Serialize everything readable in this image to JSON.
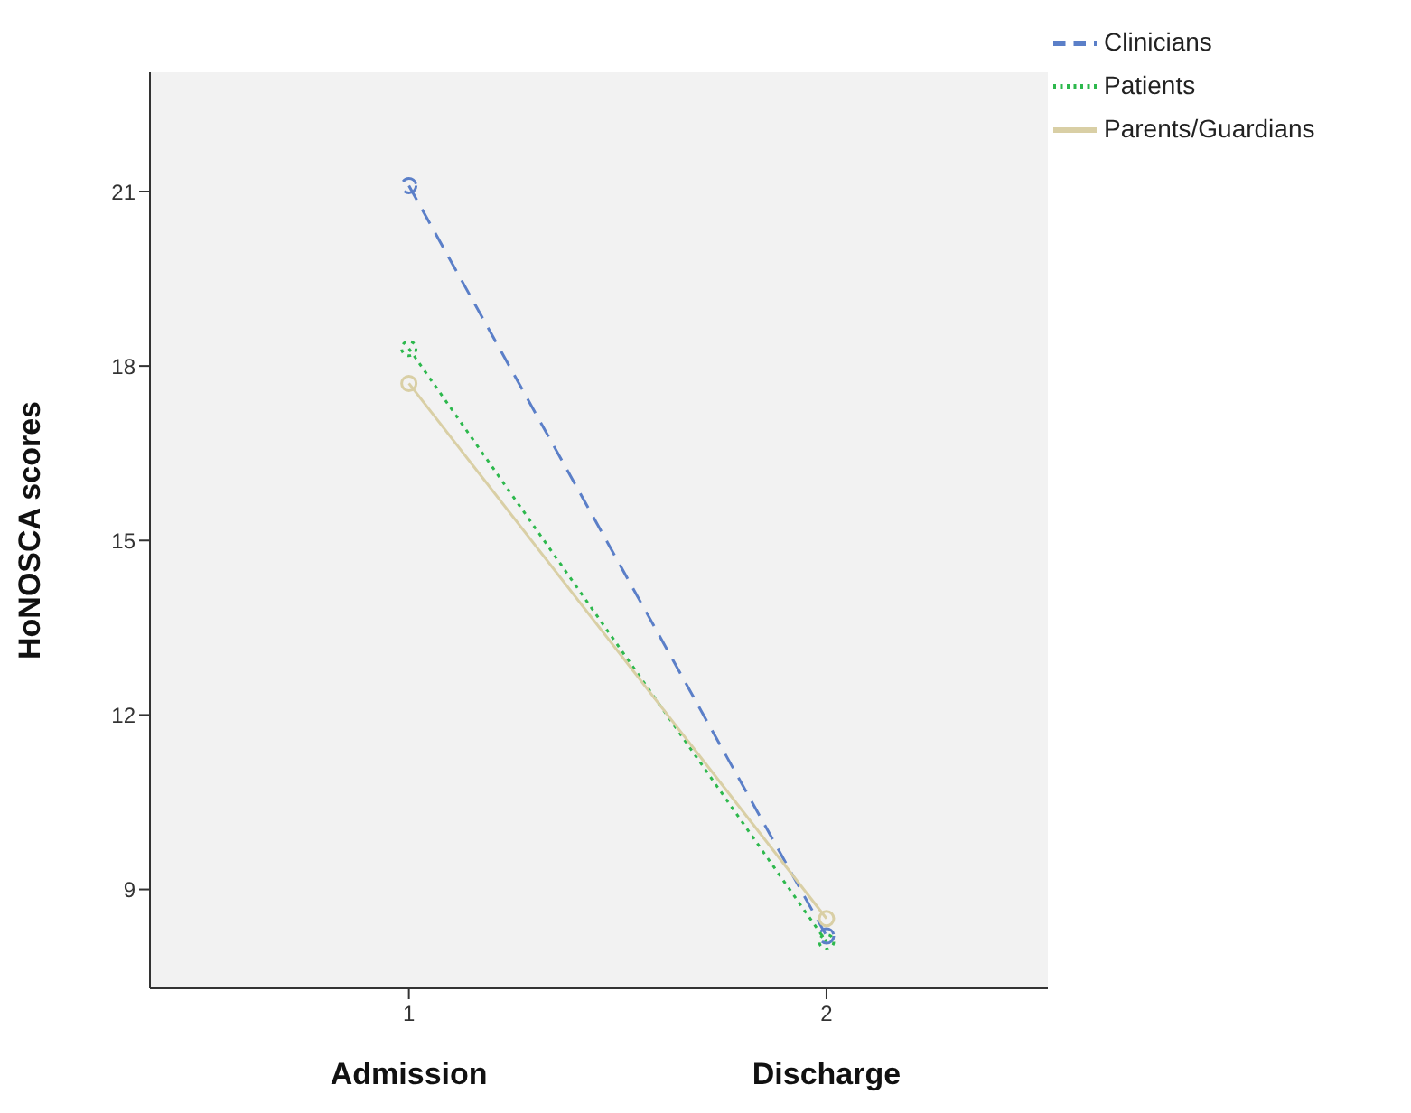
{
  "chart_data": {
    "type": "line",
    "ylabel": "HoNOSCA scores",
    "x": [
      1,
      2
    ],
    "xlim": [
      0.38,
      2.53
    ],
    "xticks": [
      1,
      2
    ],
    "ylim": [
      7.3,
      23.05
    ],
    "yticks": [
      9,
      12,
      15,
      18,
      21
    ],
    "marker": "circle",
    "legend": "top right",
    "grid": false,
    "annotations": [
      "Admission",
      "Discharge"
    ],
    "series": [
      {
        "name": "Clinicians",
        "color": "#5b7fc8",
        "line_style": "dashed",
        "values": [
          21.1,
          8.2
        ]
      },
      {
        "name": "Patients",
        "color": "#2db84d",
        "line_style": "dotted",
        "values": [
          18.3,
          8.1
        ]
      },
      {
        "name": "Parents/Guardians",
        "color": "#d9cfa5",
        "line_style": "solid",
        "values": [
          17.7,
          8.5
        ]
      }
    ]
  }
}
